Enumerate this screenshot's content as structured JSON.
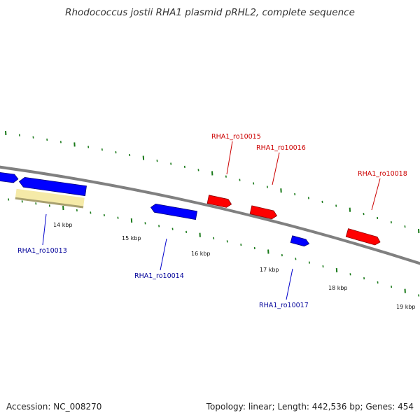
{
  "title": "Rhodococcus jostii RHA1 plasmid pRHL2, complete sequence",
  "footer": {
    "accession": "Accession: NC_008270",
    "summary": "Topology: linear; Length: 442,536 bp; Genes: 454"
  },
  "colors": {
    "backbone": "#808080",
    "tick": "#1a7a1a",
    "forward_gene": "#ff0000",
    "reverse_gene": "#0000ff",
    "forward_label": "#cc0000",
    "reverse_label": "#000099",
    "highlight": "#f5eaa8"
  },
  "ticks": {
    "labels": [
      "14 kbp",
      "15 kbp",
      "16 kbp",
      "17 kbp",
      "18 kbp",
      "19 kbp"
    ]
  },
  "genes": {
    "ro10013": {
      "label": "RHA1_ro10013",
      "strand": "reverse"
    },
    "ro10014": {
      "label": "RHA1_ro10014",
      "strand": "reverse"
    },
    "ro10015": {
      "label": "RHA1_ro10015",
      "strand": "forward"
    },
    "ro10016": {
      "label": "RHA1_ro10016",
      "strand": "forward"
    },
    "ro10017": {
      "label": "RHA1_ro10017",
      "strand": "forward_blue"
    },
    "ro10018": {
      "label": "RHA1_ro10018",
      "strand": "forward"
    }
  }
}
